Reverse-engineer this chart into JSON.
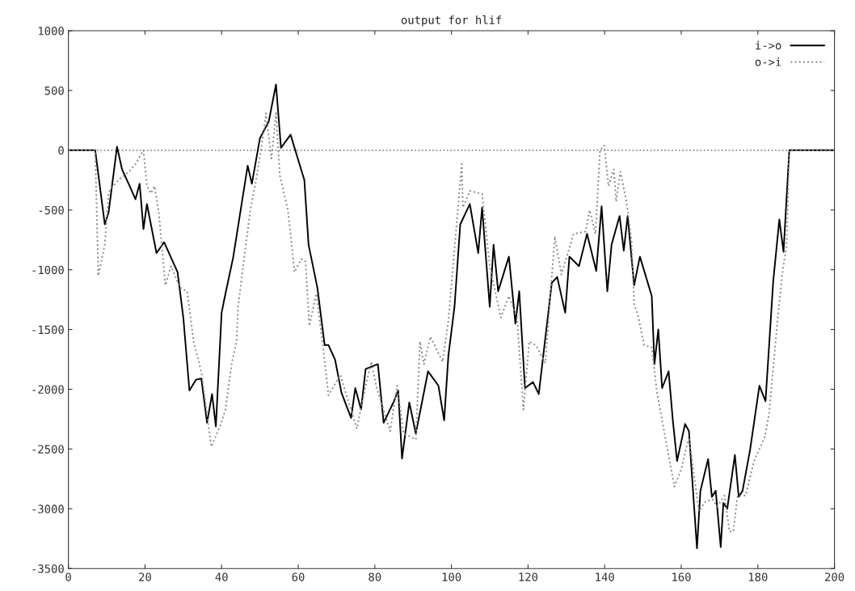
{
  "chart_data": {
    "type": "line",
    "title": "output for hlif",
    "xlim": [
      0,
      200
    ],
    "ylim": [
      -3500,
      1000
    ],
    "xticks": [
      0,
      20,
      40,
      60,
      80,
      100,
      120,
      140,
      160,
      180,
      200
    ],
    "yticks": [
      -3500,
      -3000,
      -2500,
      -2000,
      -1500,
      -1000,
      -500,
      0,
      500,
      1000
    ],
    "grid": false,
    "legend": "top right",
    "marker": "none",
    "ref_lines": [
      {
        "axis": "y",
        "value": 0,
        "line_style": "dotted",
        "color": "#888888"
      }
    ],
    "series": [
      {
        "name": "i->o",
        "color": "#000000",
        "line_style": "solid",
        "x": [
          0,
          7,
          9.5,
          10.5,
          12.7,
          14,
          16,
          17.5,
          18.6,
          19.6,
          20.5,
          23,
          25,
          28.5,
          30,
          31.6,
          33.3,
          34.7,
          36.2,
          37.5,
          38.5,
          40,
          41,
          43,
          46.8,
          47.9,
          50,
          52.3,
          54.2,
          55.5,
          58,
          61.6,
          62.7,
          65,
          66.9,
          67.9,
          69.6,
          71.3,
          73.8,
          74.9,
          76.4,
          77.6,
          80.8,
          82.3,
          85,
          86.1,
          87.1,
          89,
          90.7,
          93.9,
          96.6,
          98.1,
          99.2,
          100.8,
          102.3,
          104.8,
          107,
          108,
          110,
          111,
          112.2,
          115,
          116.7,
          117.7,
          119.2,
          121.3,
          122.8,
          126.2,
          127.6,
          129.7,
          130.8,
          133.3,
          135.4,
          137.8,
          139.2,
          140.7,
          141.8,
          143.9,
          145,
          146,
          147.7,
          149.2,
          152.3,
          153,
          154,
          155,
          156.7,
          157.8,
          158.9,
          161,
          162,
          164.1,
          165,
          167,
          168,
          169,
          170.3,
          171,
          172,
          174,
          175,
          176,
          178,
          180.4,
          182,
          184,
          185.6,
          186.7,
          188.2,
          200
        ],
        "values": [
          0,
          0,
          -620,
          -520,
          30,
          -160,
          -300,
          -410,
          -280,
          -660,
          -450,
          -860,
          -770,
          -1020,
          -1400,
          -2010,
          -1920,
          -1910,
          -2280,
          -2040,
          -2310,
          -1360,
          -1200,
          -900,
          -130,
          -280,
          100,
          240,
          550,
          20,
          130,
          -250,
          -790,
          -1150,
          -1630,
          -1630,
          -1750,
          -2030,
          -2240,
          -1990,
          -2170,
          -1830,
          -1790,
          -2280,
          -2100,
          -2010,
          -2580,
          -2110,
          -2370,
          -1850,
          -1970,
          -2260,
          -1720,
          -1310,
          -620,
          -450,
          -860,
          -480,
          -1310,
          -790,
          -1180,
          -890,
          -1450,
          -1180,
          -1990,
          -1940,
          -2040,
          -1110,
          -1060,
          -1360,
          -890,
          -970,
          -700,
          -1010,
          -470,
          -1180,
          -790,
          -550,
          -840,
          -550,
          -1130,
          -890,
          -1220,
          -1790,
          -1500,
          -1990,
          -1850,
          -2260,
          -2600,
          -2290,
          -2350,
          -3330,
          -2850,
          -2585,
          -2900,
          -2850,
          -3320,
          -2950,
          -3000,
          -2550,
          -2900,
          -2850,
          -2500,
          -1970,
          -2100,
          -1100,
          -580,
          -850,
          0,
          0
        ]
      },
      {
        "name": "o->i",
        "color": "#888888",
        "line_style": "dotted",
        "x": [
          0,
          7,
          7.8,
          9.5,
          10.5,
          13,
          15.8,
          17.5,
          19.6,
          20.5,
          21.5,
          22.5,
          23.6,
          25.3,
          26.8,
          29.1,
          31,
          32.7,
          34.8,
          37.3,
          39.7,
          41,
          42.6,
          43.9,
          44.3,
          45.5,
          47.5,
          49,
          50.5,
          51.6,
          53,
          54.2,
          55.2,
          57.3,
          58.4,
          59,
          60.8,
          61.9,
          62.9,
          64.7,
          66.5,
          67.9,
          71,
          72.7,
          75.3,
          77.6,
          79.1,
          80.5,
          84,
          85.8,
          87.5,
          90.7,
          91.8,
          92.8,
          94.5,
          97.7,
          99.2,
          102.7,
          103,
          104.8,
          108,
          110,
          112.9,
          115,
          117.1,
          118.8,
          120.3,
          122,
          124.5,
          127,
          128.7,
          131.9,
          135,
          136.1,
          137.6,
          138.8,
          139.9,
          141,
          142.4,
          143,
          144.1,
          145.6,
          147,
          147.7,
          148.7,
          150.3,
          152.3,
          153.6,
          155,
          158.2,
          160,
          162,
          164.6,
          166.3,
          168.1,
          169.4,
          171.3,
          172.6,
          173.6,
          174.7,
          176.8,
          179,
          181.8,
          182.9,
          185.2,
          186.5,
          187.5,
          188.2,
          200
        ],
        "values": [
          0,
          0,
          -1050,
          -790,
          -350,
          -250,
          -180,
          -115,
          0,
          -300,
          -360,
          -300,
          -520,
          -1130,
          -970,
          -1150,
          -1180,
          -1600,
          -1870,
          -2480,
          -2300,
          -2170,
          -1790,
          -1600,
          -1310,
          -1000,
          -500,
          -250,
          50,
          310,
          -70,
          310,
          -210,
          -500,
          -820,
          -1020,
          -910,
          -930,
          -1470,
          -1200,
          -1650,
          -2050,
          -1880,
          -2060,
          -2330,
          -1970,
          -1770,
          -1990,
          -2350,
          -1970,
          -2370,
          -2420,
          -1600,
          -1790,
          -1560,
          -1770,
          -1430,
          -115,
          -480,
          -340,
          -365,
          -970,
          -1400,
          -1220,
          -1400,
          -2170,
          -1600,
          -1630,
          -1780,
          -720,
          -1040,
          -700,
          -680,
          -500,
          -700,
          0,
          40,
          -300,
          -160,
          -430,
          -180,
          -410,
          -750,
          -1290,
          -1380,
          -1630,
          -1650,
          -2010,
          -2260,
          -2815,
          -2670,
          -2400,
          -3020,
          -2940,
          -2920,
          -2980,
          -2890,
          -3190,
          -3190,
          -2890,
          -2890,
          -2600,
          -2400,
          -2210,
          -1400,
          -1000,
          -800,
          0,
          0
        ]
      }
    ]
  }
}
